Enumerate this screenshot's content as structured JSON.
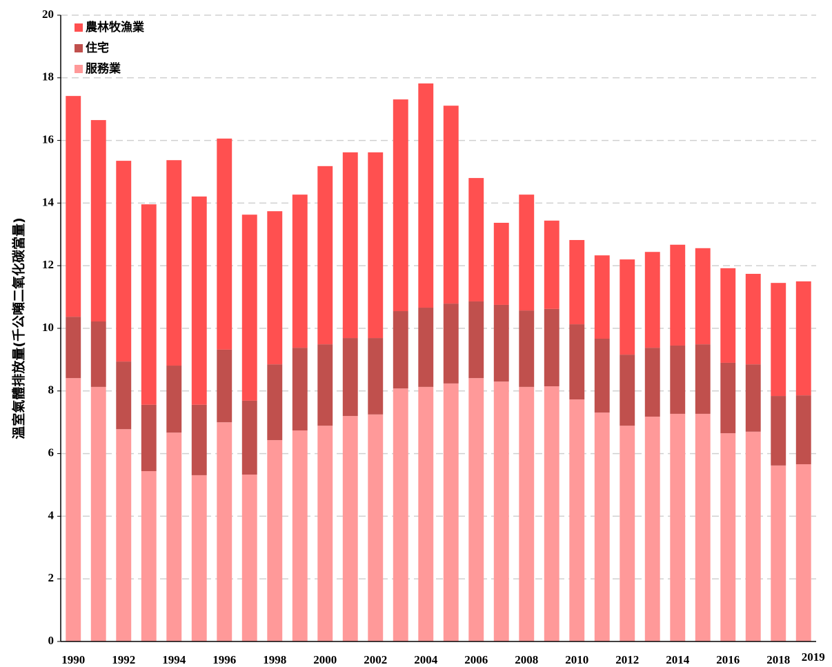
{
  "chart_data": {
    "type": "bar",
    "stacked": true,
    "y_label": "溫室氣體排放量(千公噸二氧化碳當量)",
    "categories": [
      "1990",
      null,
      "1992",
      null,
      "1994",
      null,
      "1996",
      null,
      "1998",
      null,
      "2000",
      null,
      "2002",
      null,
      "2004",
      null,
      "2006",
      null,
      "2008",
      null,
      "2010",
      null,
      "2012",
      null,
      "2014",
      null,
      "2016",
      null,
      "2018",
      "2019"
    ],
    "series": [
      {
        "name": "農林牧漁業",
        "color": "#ff5050",
        "values": [
          7.05,
          6.43,
          6.41,
          6.4,
          6.56,
          6.65,
          6.74,
          5.94,
          4.89,
          4.89,
          5.69,
          5.93,
          5.93,
          6.76,
          7.16,
          6.32,
          3.94,
          2.62,
          3.7,
          2.82,
          2.69,
          2.66,
          3.04,
          3.06,
          3.22,
          3.07,
          3.02,
          2.89,
          3.61,
          3.64
        ]
      },
      {
        "name": "住宅",
        "color": "#c0504d",
        "values": [
          1.96,
          2.09,
          2.16,
          2.12,
          2.14,
          2.25,
          2.32,
          2.36,
          2.42,
          2.64,
          2.6,
          2.49,
          2.44,
          2.47,
          2.53,
          2.55,
          2.45,
          2.45,
          2.44,
          2.47,
          2.4,
          2.36,
          2.27,
          2.2,
          2.18,
          2.22,
          2.25,
          2.15,
          2.22,
          2.2
        ]
      },
      {
        "name": "服務業",
        "color": "#ff9999",
        "values": [
          8.41,
          8.13,
          6.78,
          5.44,
          6.67,
          5.31,
          7.0,
          5.33,
          6.43,
          6.74,
          6.89,
          7.2,
          7.25,
          8.08,
          8.13,
          8.24,
          8.41,
          8.3,
          8.13,
          8.15,
          7.73,
          7.31,
          6.89,
          7.18,
          7.27,
          7.27,
          6.65,
          6.7,
          5.62,
          5.66
        ]
      }
    ],
    "ylim": [
      0,
      20
    ],
    "yticks": [
      0,
      2,
      4,
      6,
      8,
      10,
      12,
      14,
      16,
      18,
      20
    ],
    "grid": true,
    "legend": "top-left"
  }
}
